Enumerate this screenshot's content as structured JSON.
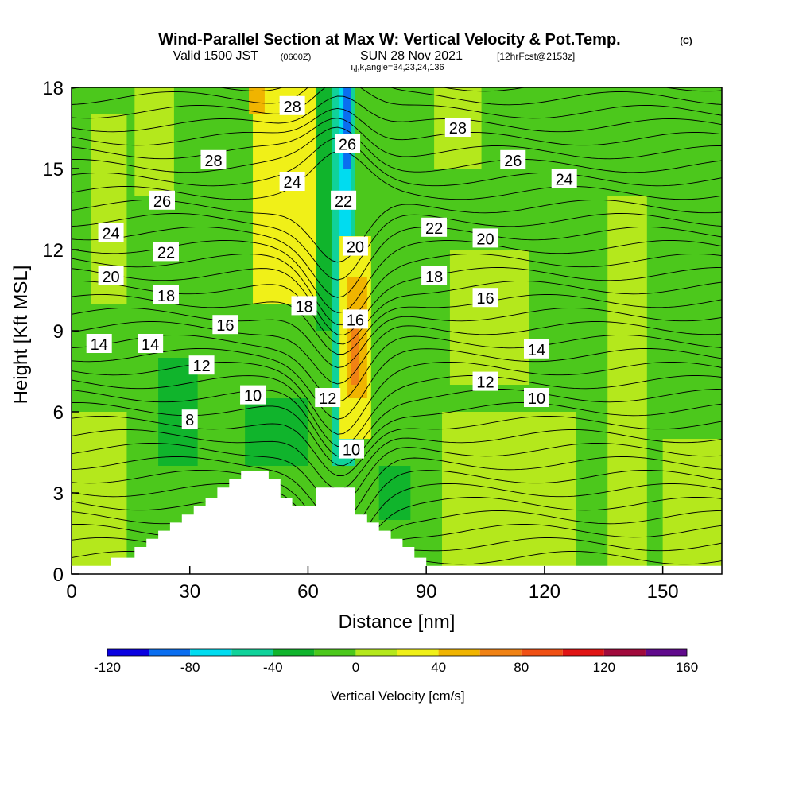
{
  "header": {
    "title": "Wind-Parallel Section at Max W: Vertical Velocity & Pot.Temp.",
    "copyright": "(C)",
    "valid_a": "Valid 1500 JST",
    "valid_z": "(0600Z)",
    "valid_b": "SUN 28 Nov 2021",
    "fcst": "[12hrFcst@2153z]",
    "indices": "i,j,k,angle=34,23,24,136"
  },
  "chart_data": {
    "type": "heatmap",
    "xlabel": "Distance [nm]",
    "ylabel": "Height [Kft MSL]",
    "xlim": [
      0,
      165
    ],
    "ylim": [
      0,
      18
    ],
    "xticks": [
      0,
      30,
      60,
      90,
      120,
      150
    ],
    "yticks": [
      0,
      3,
      6,
      9,
      12,
      15,
      18
    ],
    "colorbar": {
      "label": "Vertical Velocity [cm/s]",
      "tick_labels": [
        "-120",
        "-80",
        "-40",
        "0",
        "40",
        "80",
        "120",
        "160"
      ],
      "tick_values": [
        -120,
        -80,
        -40,
        0,
        40,
        80,
        120,
        160
      ],
      "bins": [
        -120,
        -100,
        -80,
        -60,
        -40,
        -20,
        0,
        20,
        40,
        60,
        80,
        100,
        120,
        140,
        160
      ],
      "colors": [
        "#0a00e0",
        "#0a6ef0",
        "#00dcf0",
        "#10d29a",
        "#10b42c",
        "#4cc81c",
        "#b4e81c",
        "#f0f018",
        "#f0b400",
        "#f08214",
        "#f05014",
        "#e01414",
        "#a00a3c",
        "#600a8c"
      ]
    },
    "regions": [
      {
        "color": "#4cc81c",
        "x": [
          0,
          165
        ],
        "y": [
          0,
          18
        ]
      },
      {
        "color": "#b4e81c",
        "x": [
          0,
          14
        ],
        "y": [
          0,
          6
        ]
      },
      {
        "color": "#b4e81c",
        "x": [
          5,
          14
        ],
        "y": [
          10,
          17
        ]
      },
      {
        "color": "#b4e81c",
        "x": [
          16,
          26
        ],
        "y": [
          14,
          18
        ]
      },
      {
        "color": "#10b42c",
        "x": [
          22,
          32
        ],
        "y": [
          4,
          8
        ]
      },
      {
        "color": "#10b42c",
        "x": [
          44,
          60
        ],
        "y": [
          4,
          6.5
        ]
      },
      {
        "color": "#f0f018",
        "x": [
          46,
          62
        ],
        "y": [
          10,
          18
        ]
      },
      {
        "color": "#f0b400",
        "x": [
          45,
          49
        ],
        "y": [
          17,
          18
        ]
      },
      {
        "color": "#10b42c",
        "x": [
          62,
          70
        ],
        "y": [
          9,
          18
        ]
      },
      {
        "color": "#10d29a",
        "x": [
          66,
          72
        ],
        "y": [
          4,
          18
        ]
      },
      {
        "color": "#00dcf0",
        "x": [
          68,
          71
        ],
        "y": [
          5,
          18
        ]
      },
      {
        "color": "#0a6ef0",
        "x": [
          69,
          71
        ],
        "y": [
          15,
          18
        ]
      },
      {
        "color": "#f0f018",
        "x": [
          68,
          76
        ],
        "y": [
          5,
          12.5
        ]
      },
      {
        "color": "#f0b400",
        "x": [
          70,
          75
        ],
        "y": [
          6.5,
          11
        ]
      },
      {
        "color": "#f08214",
        "x": [
          71,
          73
        ],
        "y": [
          7,
          9.5
        ]
      },
      {
        "color": "#10b42c",
        "x": [
          78,
          86
        ],
        "y": [
          2,
          4
        ]
      },
      {
        "color": "#b4e81c",
        "x": [
          94,
          128
        ],
        "y": [
          0,
          6
        ]
      },
      {
        "color": "#b4e81c",
        "x": [
          96,
          116
        ],
        "y": [
          7,
          12
        ]
      },
      {
        "color": "#b4e81c",
        "x": [
          92,
          104
        ],
        "y": [
          15,
          18
        ]
      },
      {
        "color": "#b4e81c",
        "x": [
          136,
          146
        ],
        "y": [
          0,
          14
        ]
      },
      {
        "color": "#b4e81c",
        "x": [
          150,
          165
        ],
        "y": [
          0,
          5
        ]
      }
    ],
    "terrain": [
      [
        0,
        0.3
      ],
      [
        10,
        0.3
      ],
      [
        10,
        0.6
      ],
      [
        16,
        0.6
      ],
      [
        16,
        1.0
      ],
      [
        19,
        1.0
      ],
      [
        19,
        1.3
      ],
      [
        22,
        1.3
      ],
      [
        22,
        1.6
      ],
      [
        25,
        1.6
      ],
      [
        25,
        1.9
      ],
      [
        28,
        1.9
      ],
      [
        28,
        2.2
      ],
      [
        31,
        2.2
      ],
      [
        31,
        2.5
      ],
      [
        34,
        2.5
      ],
      [
        34,
        2.8
      ],
      [
        37,
        2.8
      ],
      [
        37,
        3.2
      ],
      [
        40,
        3.2
      ],
      [
        40,
        3.5
      ],
      [
        43,
        3.5
      ],
      [
        43,
        3.8
      ],
      [
        50,
        3.8
      ],
      [
        50,
        3.5
      ],
      [
        53,
        3.5
      ],
      [
        53,
        2.8
      ],
      [
        56,
        2.8
      ],
      [
        56,
        2.5
      ],
      [
        62,
        2.5
      ],
      [
        62,
        3.2
      ],
      [
        72,
        3.2
      ],
      [
        72,
        2.2
      ],
      [
        75,
        2.2
      ],
      [
        75,
        1.9
      ],
      [
        78,
        1.9
      ],
      [
        78,
        1.6
      ],
      [
        81,
        1.6
      ],
      [
        81,
        1.3
      ],
      [
        84,
        1.3
      ],
      [
        84,
        1.0
      ],
      [
        87,
        1.0
      ],
      [
        87,
        0.6
      ],
      [
        90,
        0.6
      ],
      [
        90,
        0.3
      ],
      [
        165,
        0.3
      ],
      [
        165,
        0
      ],
      [
        0,
        0
      ]
    ],
    "contour_labels": [
      {
        "text": "28",
        "x": 56,
        "y": 17.3
      },
      {
        "text": "26",
        "x": 70,
        "y": 15.9
      },
      {
        "text": "28",
        "x": 98,
        "y": 16.5
      },
      {
        "text": "28",
        "x": 36,
        "y": 15.3
      },
      {
        "text": "26",
        "x": 112,
        "y": 15.3
      },
      {
        "text": "24",
        "x": 56,
        "y": 14.5
      },
      {
        "text": "22",
        "x": 69,
        "y": 13.8
      },
      {
        "text": "24",
        "x": 125,
        "y": 14.6
      },
      {
        "text": "26",
        "x": 23,
        "y": 13.8
      },
      {
        "text": "22",
        "x": 92,
        "y": 12.8
      },
      {
        "text": "20",
        "x": 72,
        "y": 12.1
      },
      {
        "text": "20",
        "x": 105,
        "y": 12.4
      },
      {
        "text": "24",
        "x": 10,
        "y": 12.6
      },
      {
        "text": "22",
        "x": 24,
        "y": 11.9
      },
      {
        "text": "20",
        "x": 10,
        "y": 11.0
      },
      {
        "text": "18",
        "x": 92,
        "y": 11.0
      },
      {
        "text": "18",
        "x": 24,
        "y": 10.3
      },
      {
        "text": "18",
        "x": 59,
        "y": 9.9
      },
      {
        "text": "16",
        "x": 105,
        "y": 10.2
      },
      {
        "text": "16",
        "x": 72,
        "y": 9.4
      },
      {
        "text": "16",
        "x": 39,
        "y": 9.2
      },
      {
        "text": "14",
        "x": 7,
        "y": 8.5
      },
      {
        "text": "14",
        "x": 20,
        "y": 8.5
      },
      {
        "text": "14",
        "x": 118,
        "y": 8.3
      },
      {
        "text": "12",
        "x": 33,
        "y": 7.7
      },
      {
        "text": "12",
        "x": 105,
        "y": 7.1
      },
      {
        "text": "10",
        "x": 46,
        "y": 6.6
      },
      {
        "text": "12",
        "x": 65,
        "y": 6.5
      },
      {
        "text": "10",
        "x": 118,
        "y": 6.5
      },
      {
        "text": "8",
        "x": 30,
        "y": 5.7
      },
      {
        "text": "10",
        "x": 71,
        "y": 4.6
      }
    ]
  }
}
